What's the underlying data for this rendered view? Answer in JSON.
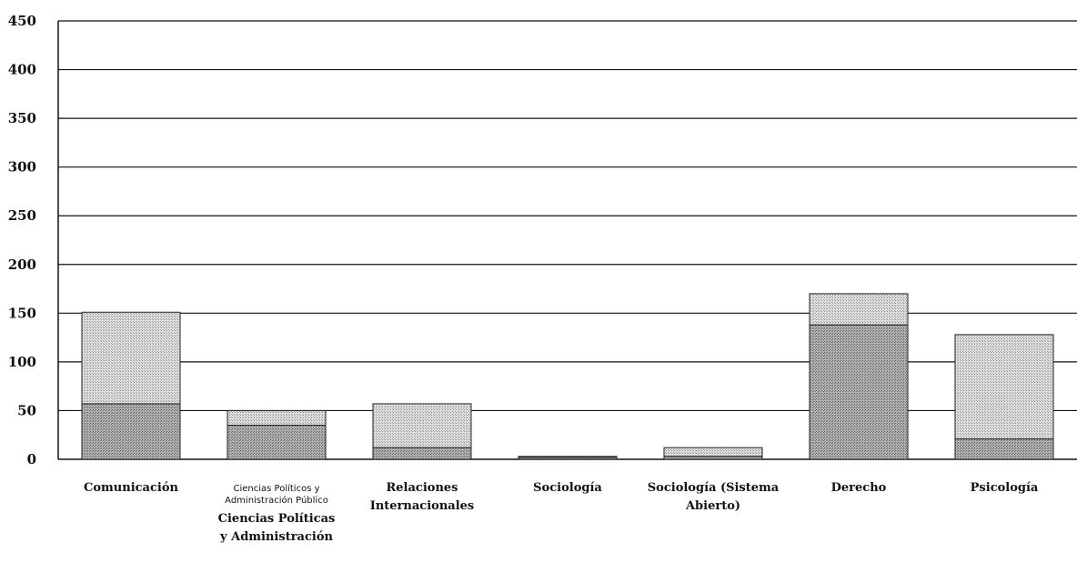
{
  "chart_data": {
    "type": "bar",
    "stacked": true,
    "categories": [
      "Comunicación",
      "Ciencias Políticos y Administración Público",
      "Relaciones Internacionales",
      "Sociología",
      "Sociología (Sistema Abierto)",
      "Derecho",
      "Psicología"
    ],
    "category_label_lines": [
      [
        "Comunicación"
      ],
      [
        "Ciencias Políticos y",
        "Administración Público"
      ],
      [
        "Relaciones",
        "Internacionales"
      ],
      [
        "Sociología"
      ],
      [
        "Sociología (Sistema",
        "Abierto)"
      ],
      [
        "Derecho"
      ],
      [
        "Psicología"
      ]
    ],
    "category_caption": [
      "Ciencias Políticas",
      "y Administración"
    ],
    "series": [
      {
        "values": [
          57,
          35,
          12,
          2,
          3,
          138,
          21
        ],
        "color": "#a3a3a3"
      },
      {
        "values": [
          94,
          15,
          45,
          1,
          9,
          32,
          107
        ],
        "color": "#d2d2d2"
      }
    ],
    "ylim": [
      0,
      450
    ],
    "yticks": [
      0,
      50,
      100,
      150,
      200,
      250,
      300,
      350,
      400,
      450
    ],
    "grid": true,
    "title": "",
    "xlabel": "",
    "ylabel": ""
  }
}
